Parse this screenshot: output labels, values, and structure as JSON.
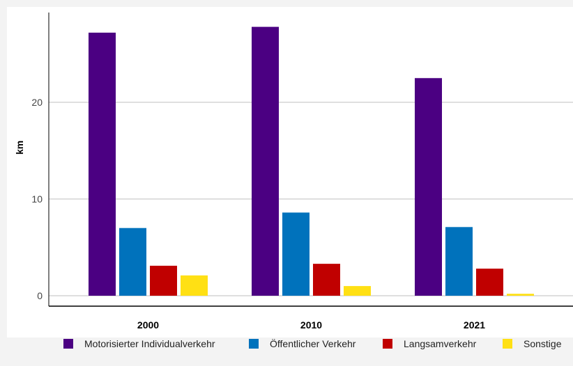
{
  "chart_data": {
    "type": "bar",
    "title": "",
    "xlabel": "",
    "ylabel": "km",
    "ylim": [
      0,
      29
    ],
    "yticks": [
      0,
      10,
      20
    ],
    "grid": true,
    "legend_position": "bottom",
    "categories": [
      "2000",
      "2010",
      "2021"
    ],
    "series": [
      {
        "name": "Motorisierter Individualverkehr",
        "color": "#4b0082",
        "values": [
          27.2,
          27.8,
          22.5
        ]
      },
      {
        "name": "Öffentlicher Verkehr",
        "color": "#0072bc",
        "values": [
          7.0,
          8.6,
          7.1
        ]
      },
      {
        "name": "Langsamverkehr",
        "color": "#c00000",
        "values": [
          3.1,
          3.3,
          2.8
        ]
      },
      {
        "name": "Sonstige",
        "color": "#ffe014",
        "values": [
          2.1,
          1.0,
          0.2
        ]
      }
    ]
  }
}
